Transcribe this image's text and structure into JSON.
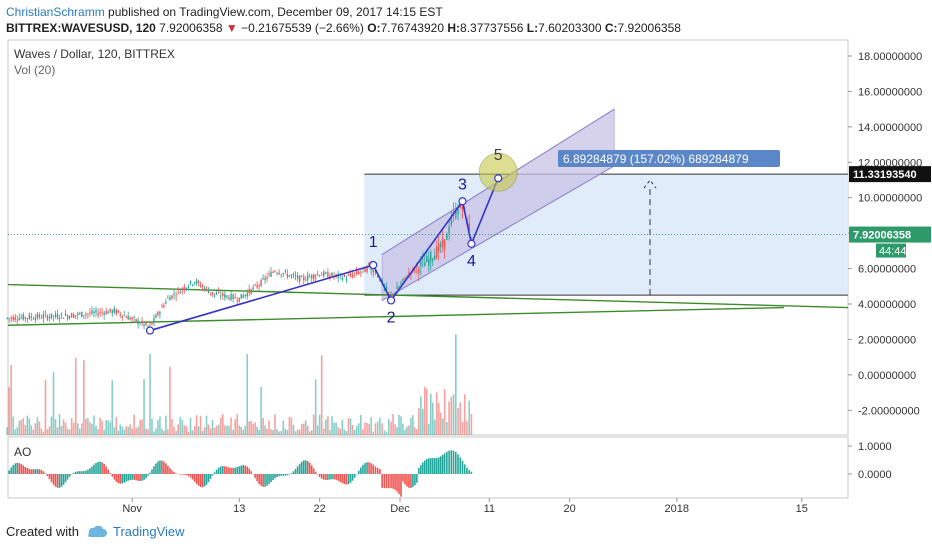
{
  "header": {
    "author": "ChristianSchramm",
    "published_text": "published on TradingView.com, December 09, 2017 14:15 EST",
    "symbol": "BITTREX:WAVESUSD, 120",
    "last": "7.92006358",
    "change_arrow": "▼",
    "change": "−0.21675539 (−2.66%)",
    "o_label": "O:",
    "o": "7.76743920",
    "h_label": "H:",
    "h": "8.37737556",
    "l_label": "L:",
    "l": "7.60203300",
    "c_label": "C:",
    "c": "7.92006358"
  },
  "legend": {
    "title": "Waves / Dollar, 120, BITTREX",
    "vol": "Vol (20)",
    "ao": "AO"
  },
  "footer": {
    "created_with": "Created with",
    "brand": "TradingView"
  },
  "colors": {
    "up": "#26a69a",
    "down": "#ef5350",
    "projection_fill": "#dbe9f9",
    "channel_fill": "#c9c3e6",
    "wave_line": "#3333cc",
    "trend_line": "#3d8b2a",
    "circle_fill": "#c8c94a"
  },
  "chart_data": {
    "type": "candlestick",
    "title": "Waves / Dollar, 120, BITTREX",
    "price_axis": {
      "ticks": [
        "18.00000000",
        "16.00000000",
        "14.00000000",
        "12.00000000",
        "10.00000000",
        "8.00000000",
        "6.00000000",
        "4.00000000",
        "2.00000000",
        "0.00000000",
        "-2.00000000"
      ],
      "range": [
        -2.8,
        19.2
      ]
    },
    "time_axis": {
      "ticks": [
        "Nov",
        "13",
        "22",
        "Dec",
        "11",
        "20",
        "2018",
        "15"
      ]
    },
    "ao_axis": {
      "ticks": [
        "1.0000",
        "0.0000"
      ]
    },
    "last_price_label": "7.92006358",
    "countdown_label": "44:44",
    "target_label": "11.33193540",
    "measure_label": "6.89284879 (157.02%) 689284879",
    "waves": [
      {
        "label": "1",
        "date": "2017-11-28",
        "price": 6.2
      },
      {
        "label": "2",
        "date": "2017-11-30",
        "price": 4.2
      },
      {
        "label": "3",
        "date": "2017-12-08",
        "price": 9.8
      },
      {
        "label": "4",
        "date": "2017-12-09",
        "price": 7.4
      },
      {
        "label": "5",
        "date": "2017-12-12",
        "price": 11.1
      }
    ],
    "wave_start": {
      "date": "2017-11-03",
      "price": 2.5
    },
    "price_path": [
      [
        "2017-10-18",
        3.2
      ],
      [
        "2017-10-25",
        3.35
      ],
      [
        "2017-10-30",
        3.6
      ],
      [
        "2017-11-03",
        2.7
      ],
      [
        "2017-11-05",
        4.3
      ],
      [
        "2017-11-08",
        5.3
      ],
      [
        "2017-11-10",
        4.6
      ],
      [
        "2017-11-13",
        4.3
      ],
      [
        "2017-11-15",
        5.0
      ],
      [
        "2017-11-17",
        5.9
      ],
      [
        "2017-11-20",
        5.4
      ],
      [
        "2017-11-22",
        5.7
      ],
      [
        "2017-11-25",
        5.5
      ],
      [
        "2017-11-28",
        6.1
      ],
      [
        "2017-11-29",
        5.2
      ],
      [
        "2017-11-30",
        4.4
      ],
      [
        "2017-12-02",
        5.7
      ],
      [
        "2017-12-04",
        6.4
      ],
      [
        "2017-12-06",
        7.4
      ],
      [
        "2017-12-07",
        9.0
      ],
      [
        "2017-12-08",
        9.6
      ],
      [
        "2017-12-09",
        7.9
      ]
    ]
  }
}
